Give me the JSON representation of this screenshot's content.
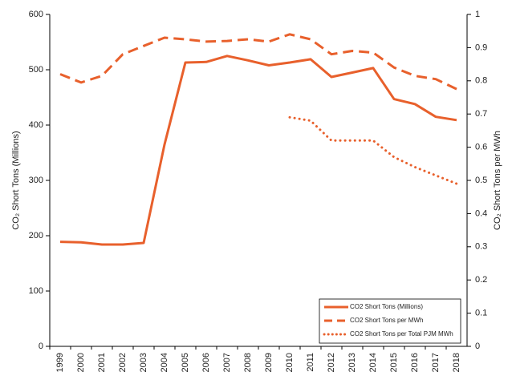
{
  "chart_data": {
    "type": "line",
    "categories": [
      "1999",
      "2000",
      "2001",
      "2002",
      "2003",
      "2004",
      "2005",
      "2006",
      "2007",
      "2008",
      "2009",
      "2010",
      "2011",
      "2012",
      "2013",
      "2014",
      "2015",
      "2016",
      "2017",
      "2018"
    ],
    "series": [
      {
        "name": "CO2 Short Tons (Millions)",
        "color": "#e8602c",
        "style": "solid",
        "values": [
          189,
          188,
          184,
          184,
          187,
          365,
          513,
          514,
          525,
          517,
          508,
          513,
          519,
          487,
          495,
          503,
          447,
          438,
          415,
          409
        ]
      },
      {
        "name": "CO2 Short Tons per MWh",
        "color": "#e8602c",
        "style": "dashed",
        "axis": "y2",
        "values": [
          0.82,
          0.795,
          0.815,
          0.88,
          0.905,
          0.93,
          0.925,
          0.918,
          0.92,
          0.925,
          0.918,
          0.94,
          0.925,
          0.88,
          0.89,
          0.885,
          0.84,
          0.815,
          0.805,
          0.775
        ]
      },
      {
        "name": "CO2 Short Tons per Total PJM MWh",
        "color": "#e8602c",
        "style": "dotted",
        "axis": "y2",
        "values": [
          null,
          null,
          null,
          null,
          null,
          null,
          null,
          null,
          null,
          null,
          null,
          0.69,
          0.68,
          0.62,
          0.62,
          0.62,
          0.57,
          0.54,
          0.515,
          0.49
        ]
      }
    ],
    "ylabel": "CO₂ Short Tons (Millions)",
    "y2label": "CO₂ Short Tons per MWh",
    "ylim": [
      0,
      600
    ],
    "yticks": [
      0,
      100,
      200,
      300,
      400,
      500,
      600
    ],
    "y2lim": [
      0,
      1
    ],
    "y2ticks": [
      0,
      0.1,
      0.2,
      0.3,
      0.4,
      0.5,
      0.6,
      0.7,
      0.8,
      0.9,
      1
    ],
    "legend": "lower right",
    "grid": false
  }
}
